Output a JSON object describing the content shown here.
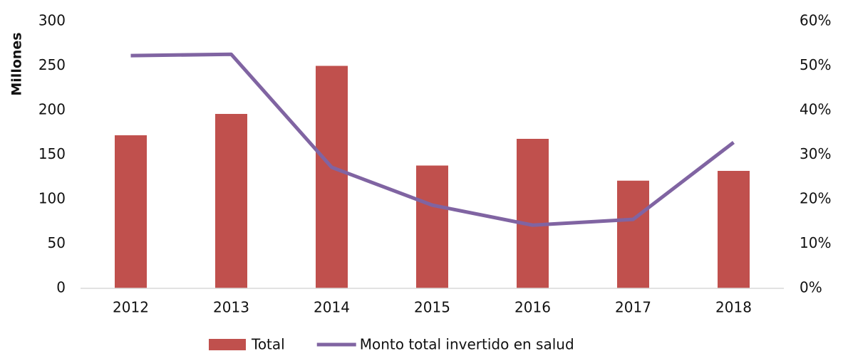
{
  "chart_data": {
    "type": "bar",
    "y_label": "Millones",
    "categories": [
      "2012",
      "2013",
      "2014",
      "2015",
      "2016",
      "2017",
      "2018"
    ],
    "series": [
      {
        "name": "Total",
        "type": "bar",
        "color": "#c0504d",
        "values": [
          172,
          196,
          250,
          138,
          168,
          121,
          132
        ]
      },
      {
        "name": "Monto total invertido en salud",
        "type": "line",
        "axis": "y2",
        "color": "#8064a2",
        "values": [
          52.3,
          52.6,
          27.2,
          18.7,
          14.2,
          15.5,
          32.8
        ]
      }
    ],
    "ylim": [
      0,
      300
    ],
    "yticks": [
      0,
      50,
      100,
      150,
      200,
      250,
      300
    ],
    "y2lim": [
      0,
      60
    ],
    "y2ticks": [
      {
        "value": 0,
        "label": "0%"
      },
      {
        "value": 10,
        "label": "10%"
      },
      {
        "value": 20,
        "label": "20%"
      },
      {
        "value": 30,
        "label": "30%"
      },
      {
        "value": 40,
        "label": "40%"
      },
      {
        "value": 50,
        "label": "50%"
      },
      {
        "value": 60,
        "label": "60%"
      }
    ],
    "legend": "bottom"
  }
}
